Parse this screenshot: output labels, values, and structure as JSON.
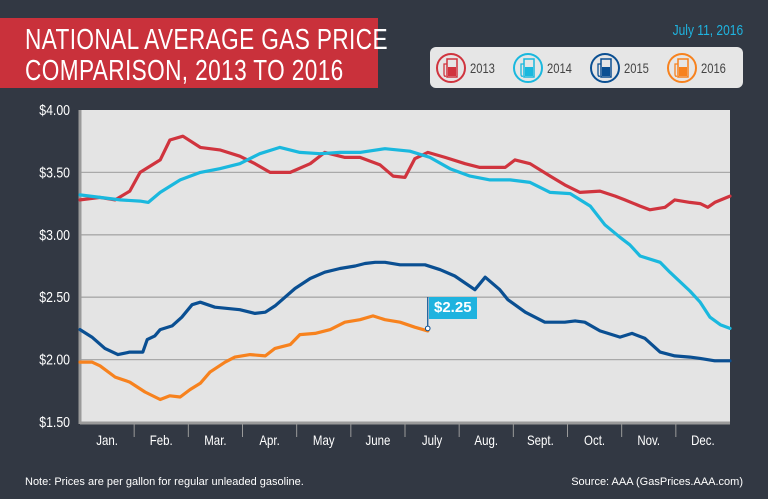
{
  "header": {
    "title_line1": "NATIONAL AVERAGE GAS PRICE",
    "title_line2": "COMPARISON, 2013 TO 2016",
    "date": "July 11, 2016"
  },
  "legend": [
    {
      "label": "2013",
      "color": "#d0343e",
      "icon": "gas-pump-icon"
    },
    {
      "label": "2014",
      "color": "#1ab8de",
      "icon": "gas-pump-icon"
    },
    {
      "label": "2015",
      "color": "#0a4f92",
      "icon": "gas-pump-icon"
    },
    {
      "label": "2016",
      "color": "#f7821e",
      "icon": "gas-pump-icon"
    }
  ],
  "footer": {
    "note": "Note: Prices are per gallon for regular unleaded gasoline.",
    "source": "Source: AAA (GasPrices.AAA.com)"
  },
  "chart_data": {
    "type": "line",
    "title": "NATIONAL AVERAGE GAS PRICE COMPARISON, 2013 TO 2016",
    "xlabel": "",
    "ylabel": "",
    "categories": [
      "Jan.",
      "Feb.",
      "Mar.",
      "Apr.",
      "May",
      "June",
      "July",
      "Aug.",
      "Sept.",
      "Oct.",
      "Nov.",
      "Dec."
    ],
    "xlim": [
      0,
      12
    ],
    "ylim": [
      1.5,
      4.0
    ],
    "yticks": [
      4.0,
      3.5,
      3.0,
      2.5,
      2.0,
      1.5
    ],
    "ytick_labels": [
      "$4.00",
      "$3.50",
      "$3.00",
      "$2.50",
      "$2.00",
      "$1.50"
    ],
    "grid": true,
    "legend_position": "top-right",
    "annotation": {
      "series": "2016",
      "x": 6.42,
      "y": 2.25,
      "label": "$2.25"
    },
    "series": [
      {
        "name": "2013",
        "color": "#d0343e",
        "x": [
          0,
          0.37,
          0.65,
          0.92,
          1.11,
          1.48,
          1.66,
          1.9,
          2.22,
          2.58,
          2.95,
          3.23,
          3.51,
          3.88,
          4.25,
          4.52,
          4.89,
          5.17,
          5.54,
          5.78,
          6.0,
          6.18,
          6.42,
          6.74,
          7.11,
          7.38,
          7.85,
          8.03,
          8.31,
          8.68,
          8.95,
          9.23,
          9.6,
          9.88,
          10.06,
          10.34,
          10.52,
          10.8,
          10.98,
          11.26,
          11.45,
          11.59,
          11.72,
          12
        ],
        "y": [
          3.28,
          3.3,
          3.28,
          3.35,
          3.5,
          3.6,
          3.76,
          3.79,
          3.7,
          3.68,
          3.63,
          3.57,
          3.5,
          3.5,
          3.57,
          3.66,
          3.62,
          3.62,
          3.56,
          3.47,
          3.46,
          3.61,
          3.66,
          3.62,
          3.57,
          3.54,
          3.54,
          3.6,
          3.57,
          3.47,
          3.4,
          3.34,
          3.35,
          3.31,
          3.28,
          3.23,
          3.2,
          3.22,
          3.28,
          3.26,
          3.25,
          3.22,
          3.26,
          3.31
        ]
      },
      {
        "name": "2014",
        "color": "#1ab8de",
        "x": [
          0,
          0.37,
          0.74,
          1.11,
          1.26,
          1.48,
          1.85,
          2.22,
          2.58,
          2.95,
          3.32,
          3.69,
          4.06,
          4.43,
          4.8,
          5.17,
          5.63,
          6.09,
          6.46,
          6.83,
          7.2,
          7.57,
          7.94,
          8.31,
          8.68,
          9.05,
          9.42,
          9.69,
          9.97,
          10.15,
          10.34,
          10.71,
          10.89,
          11.26,
          11.45,
          11.63,
          11.82,
          12
        ],
        "y": [
          3.32,
          3.3,
          3.28,
          3.27,
          3.26,
          3.34,
          3.44,
          3.5,
          3.53,
          3.57,
          3.65,
          3.7,
          3.66,
          3.65,
          3.66,
          3.66,
          3.69,
          3.67,
          3.62,
          3.53,
          3.47,
          3.44,
          3.44,
          3.42,
          3.34,
          3.33,
          3.23,
          3.08,
          2.98,
          2.92,
          2.83,
          2.78,
          2.7,
          2.55,
          2.46,
          2.34,
          2.28,
          2.25
        ]
      },
      {
        "name": "2015",
        "color": "#0a4f92",
        "x": [
          0,
          0.22,
          0.46,
          0.7,
          0.92,
          1.16,
          1.24,
          1.38,
          1.48,
          1.7,
          1.88,
          2.07,
          2.22,
          2.49,
          2.95,
          3.23,
          3.42,
          3.6,
          3.97,
          4.25,
          4.52,
          4.8,
          5.08,
          5.26,
          5.45,
          5.63,
          5.91,
          6.37,
          6.65,
          6.92,
          7.29,
          7.48,
          7.75,
          7.9,
          8.22,
          8.58,
          8.95,
          9.14,
          9.32,
          9.6,
          9.97,
          10.19,
          10.43,
          10.71,
          10.98,
          11.26,
          11.45,
          11.72,
          12
        ],
        "y": [
          2.24,
          2.18,
          2.09,
          2.04,
          2.06,
          2.06,
          2.16,
          2.19,
          2.24,
          2.27,
          2.34,
          2.44,
          2.46,
          2.42,
          2.4,
          2.37,
          2.38,
          2.43,
          2.57,
          2.65,
          2.7,
          2.73,
          2.75,
          2.77,
          2.78,
          2.78,
          2.76,
          2.76,
          2.72,
          2.67,
          2.56,
          2.66,
          2.56,
          2.48,
          2.38,
          2.3,
          2.3,
          2.31,
          2.3,
          2.23,
          2.18,
          2.21,
          2.17,
          2.06,
          2.03,
          2.02,
          2.01,
          1.99,
          1.99
        ]
      },
      {
        "name": "2016",
        "color": "#f7821e",
        "x": [
          0,
          0.22,
          0.37,
          0.65,
          0.92,
          1.2,
          1.48,
          1.66,
          1.85,
          2.03,
          2.22,
          2.4,
          2.68,
          2.86,
          3.14,
          3.42,
          3.6,
          3.88,
          4.06,
          4.34,
          4.62,
          4.89,
          5.17,
          5.41,
          5.63,
          5.91,
          6.18,
          6.42
        ],
        "y": [
          1.98,
          1.98,
          1.95,
          1.86,
          1.82,
          1.74,
          1.68,
          1.71,
          1.7,
          1.76,
          1.81,
          1.9,
          1.98,
          2.02,
          2.04,
          2.03,
          2.09,
          2.12,
          2.2,
          2.21,
          2.24,
          2.3,
          2.32,
          2.35,
          2.32,
          2.3,
          2.26,
          2.23
        ]
      }
    ]
  }
}
